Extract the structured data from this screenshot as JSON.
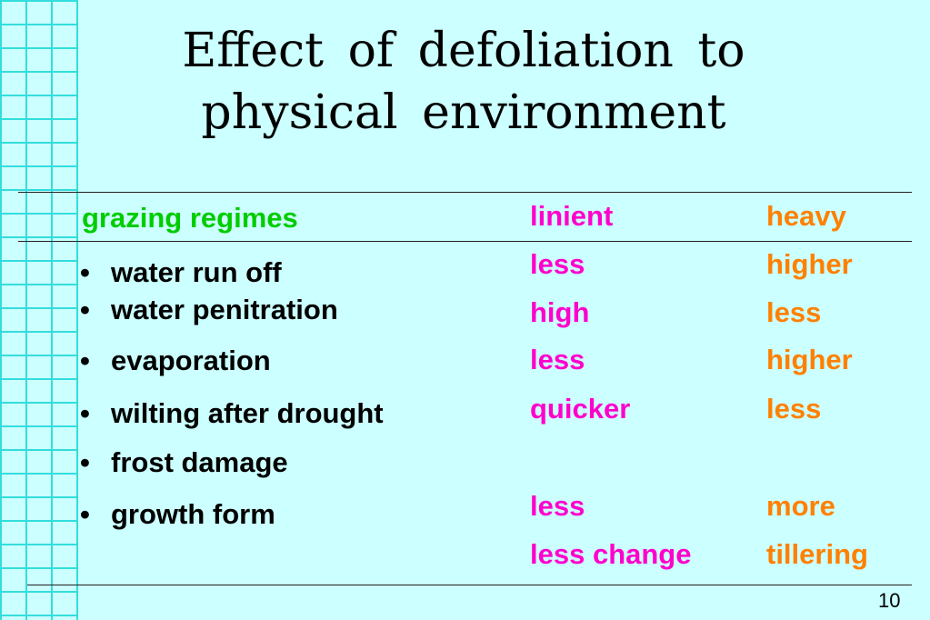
{
  "title_line1": "Effect  of  defoliation  to",
  "title_line2": "physical  environment",
  "header": {
    "label": "grazing regimes",
    "col1": "linient",
    "col2": "heavy"
  },
  "rows": [
    {
      "label": "water run off",
      "col1": "less",
      "col2": "higher"
    },
    {
      "label": "water penitration",
      "col1": "high",
      "col2": "less"
    },
    {
      "label": "evaporation",
      "col1": "less",
      "col2": "higher"
    },
    {
      "label": "wilting after drought",
      "col1": "quicker",
      "col2": "less"
    },
    {
      "label": "frost damage",
      "col1": "",
      "col2": ""
    },
    {
      "label": "growth form",
      "col1": "less",
      "col2": "more"
    }
  ],
  "extra_row": {
    "col1": "less change",
    "col2": "tillering"
  },
  "bullet_symbol": "•",
  "page_number": "10",
  "colors": {
    "background": "#ccffff",
    "grid": "#33dddd",
    "header_label": "#00cc00",
    "col1": "#ff00cc",
    "col2": "#ff8000"
  }
}
